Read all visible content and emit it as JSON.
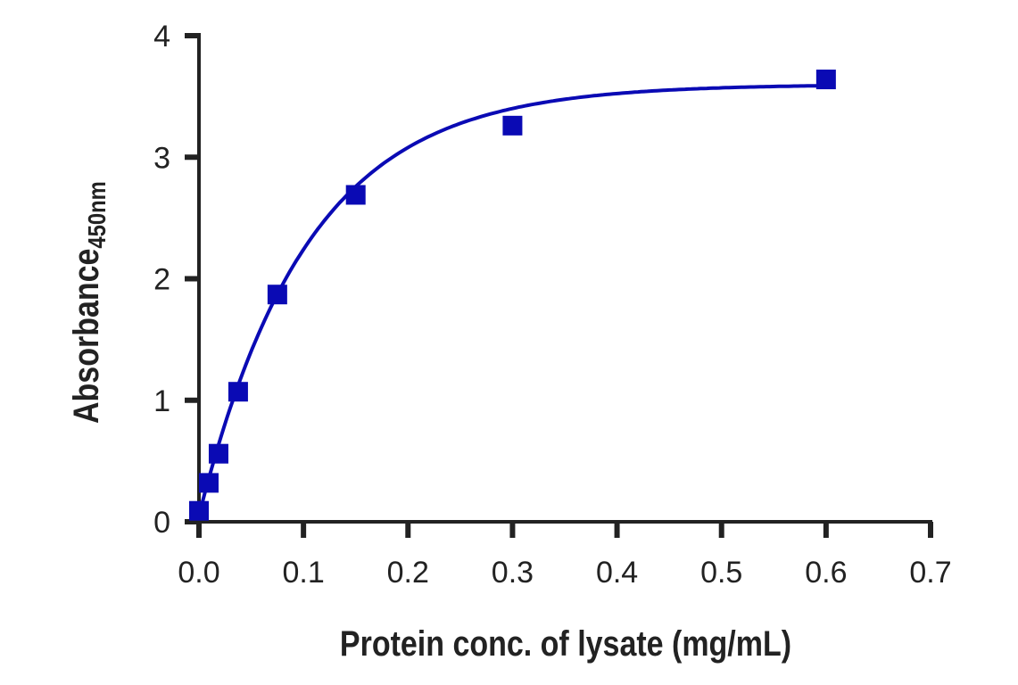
{
  "chart_data": {
    "type": "scatter",
    "title": "",
    "xlabel": "Protein conc. of lysate (mg/mL)",
    "ylabel": "Absorbance",
    "ylabel_subscript": "450nm",
    "xlim": [
      0,
      0.7
    ],
    "ylim": [
      0,
      4
    ],
    "xticks": [
      "0.0",
      "0.1",
      "0.2",
      "0.3",
      "0.4",
      "0.5",
      "0.6",
      "0.7"
    ],
    "yticks": [
      "0",
      "1",
      "2",
      "3",
      "4"
    ],
    "grid": false,
    "legend": "none",
    "color": "#0a0ab4",
    "fit_line": "saturation curve",
    "series": [
      {
        "x": [
          0,
          0.009375,
          0.01875,
          0.0375,
          0.075,
          0.15,
          0.3,
          0.6
        ],
        "y": [
          0.09,
          0.32,
          0.56,
          1.07,
          1.87,
          2.69,
          3.26,
          3.64
        ]
      }
    ]
  }
}
